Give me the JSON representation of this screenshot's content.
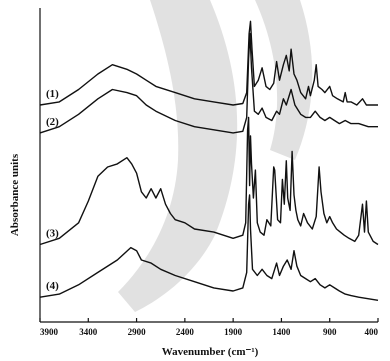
{
  "chart_data": {
    "type": "line",
    "title": "",
    "xlabel": "Wavenumber (cm⁻¹)",
    "ylabel": "Absorbance units",
    "x_reversed": true,
    "xlim": [
      3900,
      400
    ],
    "x_ticks": [
      "3900",
      "3400",
      "2900",
      "2400",
      "1900",
      "1400",
      "900",
      "400"
    ],
    "x_tick_values": [
      3900,
      3400,
      2900,
      2400,
      1900,
      1400,
      900,
      400
    ],
    "ylim": [
      0,
      10
    ],
    "y_ticks": false,
    "grid": false,
    "series": [
      {
        "name": "(1)",
        "points": [
          [
            3900,
            7.0
          ],
          [
            3700,
            7.1
          ],
          [
            3500,
            7.5
          ],
          [
            3300,
            8.0
          ],
          [
            3150,
            8.3
          ],
          [
            3000,
            8.15
          ],
          [
            2900,
            8.0
          ],
          [
            2800,
            7.8
          ],
          [
            2700,
            7.6
          ],
          [
            2500,
            7.4
          ],
          [
            2300,
            7.2
          ],
          [
            2100,
            7.1
          ],
          [
            1900,
            7.0
          ],
          [
            1800,
            7.05
          ],
          [
            1760,
            7.4
          ],
          [
            1735,
            9.3
          ],
          [
            1720,
            9.7
          ],
          [
            1705,
            8.8
          ],
          [
            1680,
            7.6
          ],
          [
            1640,
            7.8
          ],
          [
            1600,
            8.2
          ],
          [
            1560,
            7.6
          ],
          [
            1520,
            7.5
          ],
          [
            1480,
            7.7
          ],
          [
            1450,
            8.4
          ],
          [
            1420,
            7.8
          ],
          [
            1380,
            8.3
          ],
          [
            1350,
            8.6
          ],
          [
            1320,
            8.1
          ],
          [
            1300,
            8.8
          ],
          [
            1270,
            8.0
          ],
          [
            1240,
            7.8
          ],
          [
            1200,
            7.4
          ],
          [
            1150,
            7.2
          ],
          [
            1120,
            7.6
          ],
          [
            1100,
            7.3
          ],
          [
            1060,
            7.8
          ],
          [
            1040,
            8.3
          ],
          [
            1020,
            7.6
          ],
          [
            980,
            7.5
          ],
          [
            950,
            7.4
          ],
          [
            900,
            7.6
          ],
          [
            870,
            7.3
          ],
          [
            820,
            7.2
          ],
          [
            760,
            7.1
          ],
          [
            740,
            7.4
          ],
          [
            720,
            7.1
          ],
          [
            680,
            7.1
          ],
          [
            620,
            7.0
          ],
          [
            560,
            7.2
          ],
          [
            520,
            7.0
          ],
          [
            400,
            7.0
          ]
        ]
      },
      {
        "name": "(2)",
        "points": [
          [
            3900,
            6.1
          ],
          [
            3700,
            6.3
          ],
          [
            3500,
            6.7
          ],
          [
            3300,
            7.2
          ],
          [
            3150,
            7.5
          ],
          [
            3000,
            7.4
          ],
          [
            2900,
            7.3
          ],
          [
            2800,
            7.0
          ],
          [
            2700,
            6.8
          ],
          [
            2500,
            6.5
          ],
          [
            2300,
            6.3
          ],
          [
            2100,
            6.2
          ],
          [
            1900,
            6.1
          ],
          [
            1800,
            6.15
          ],
          [
            1760,
            6.6
          ],
          [
            1740,
            8.5
          ],
          [
            1725,
            9.3
          ],
          [
            1710,
            8.2
          ],
          [
            1680,
            6.8
          ],
          [
            1640,
            6.7
          ],
          [
            1600,
            6.9
          ],
          [
            1560,
            6.6
          ],
          [
            1500,
            6.5
          ],
          [
            1450,
            6.8
          ],
          [
            1420,
            6.7
          ],
          [
            1380,
            7.2
          ],
          [
            1350,
            7.0
          ],
          [
            1300,
            7.5
          ],
          [
            1260,
            7.0
          ],
          [
            1200,
            6.7
          ],
          [
            1150,
            6.6
          ],
          [
            1100,
            6.6
          ],
          [
            1050,
            6.8
          ],
          [
            1000,
            6.6
          ],
          [
            950,
            6.5
          ],
          [
            900,
            6.6
          ],
          [
            850,
            6.5
          ],
          [
            800,
            6.4
          ],
          [
            740,
            6.5
          ],
          [
            680,
            6.4
          ],
          [
            600,
            6.4
          ],
          [
            500,
            6.3
          ],
          [
            400,
            6.3
          ]
        ]
      },
      {
        "name": "(3)",
        "points": [
          [
            3900,
            2.5
          ],
          [
            3700,
            2.7
          ],
          [
            3500,
            3.2
          ],
          [
            3400,
            3.9
          ],
          [
            3300,
            4.7
          ],
          [
            3200,
            5.0
          ],
          [
            3100,
            5.1
          ],
          [
            3000,
            5.3
          ],
          [
            2950,
            5.1
          ],
          [
            2900,
            4.8
          ],
          [
            2850,
            4.2
          ],
          [
            2800,
            4.0
          ],
          [
            2750,
            4.3
          ],
          [
            2700,
            4.0
          ],
          [
            2650,
            4.3
          ],
          [
            2600,
            3.8
          ],
          [
            2550,
            3.5
          ],
          [
            2500,
            3.3
          ],
          [
            2400,
            3.2
          ],
          [
            2300,
            3.0
          ],
          [
            2100,
            2.9
          ],
          [
            1900,
            2.7
          ],
          [
            1800,
            2.8
          ],
          [
            1770,
            3.2
          ],
          [
            1750,
            6.2
          ],
          [
            1740,
            6.6
          ],
          [
            1730,
            4.4
          ],
          [
            1720,
            6.0
          ],
          [
            1710,
            5.1
          ],
          [
            1690,
            4.0
          ],
          [
            1670,
            4.9
          ],
          [
            1650,
            3.2
          ],
          [
            1620,
            2.9
          ],
          [
            1580,
            2.8
          ],
          [
            1550,
            3.3
          ],
          [
            1510,
            3.1
          ],
          [
            1480,
            5.0
          ],
          [
            1470,
            4.9
          ],
          [
            1440,
            3.3
          ],
          [
            1410,
            3.2
          ],
          [
            1390,
            4.6
          ],
          [
            1370,
            3.8
          ],
          [
            1350,
            5.2
          ],
          [
            1335,
            4.0
          ],
          [
            1310,
            3.6
          ],
          [
            1290,
            5.5
          ],
          [
            1270,
            4.1
          ],
          [
            1250,
            3.6
          ],
          [
            1230,
            3.3
          ],
          [
            1200,
            3.1
          ],
          [
            1170,
            3.5
          ],
          [
            1130,
            3.2
          ],
          [
            1080,
            3.0
          ],
          [
            1040,
            3.4
          ],
          [
            1010,
            5.0
          ],
          [
            990,
            4.2
          ],
          [
            960,
            3.5
          ],
          [
            930,
            3.2
          ],
          [
            900,
            3.4
          ],
          [
            870,
            3.2
          ],
          [
            830,
            3.0
          ],
          [
            790,
            2.9
          ],
          [
            750,
            2.8
          ],
          [
            700,
            2.7
          ],
          [
            640,
            2.6
          ],
          [
            600,
            2.8
          ],
          [
            560,
            3.8
          ],
          [
            540,
            2.9
          ],
          [
            520,
            3.9
          ],
          [
            500,
            2.9
          ],
          [
            450,
            2.6
          ],
          [
            400,
            2.5
          ]
        ]
      },
      {
        "name": "(4)",
        "points": [
          [
            3900,
            0.8
          ],
          [
            3700,
            0.9
          ],
          [
            3500,
            1.2
          ],
          [
            3300,
            1.6
          ],
          [
            3100,
            2.0
          ],
          [
            2960,
            2.4
          ],
          [
            2900,
            2.3
          ],
          [
            2850,
            2.0
          ],
          [
            2750,
            1.9
          ],
          [
            2650,
            1.7
          ],
          [
            2500,
            1.5
          ],
          [
            2300,
            1.3
          ],
          [
            2100,
            1.1
          ],
          [
            1900,
            1.0
          ],
          [
            1800,
            1.1
          ],
          [
            1760,
            1.6
          ],
          [
            1740,
            3.8
          ],
          [
            1730,
            4.1
          ],
          [
            1720,
            3.0
          ],
          [
            1700,
            1.7
          ],
          [
            1650,
            1.5
          ],
          [
            1600,
            1.7
          ],
          [
            1550,
            1.5
          ],
          [
            1500,
            1.4
          ],
          [
            1450,
            1.9
          ],
          [
            1420,
            1.5
          ],
          [
            1380,
            1.8
          ],
          [
            1340,
            2.0
          ],
          [
            1300,
            1.7
          ],
          [
            1270,
            2.3
          ],
          [
            1240,
            1.8
          ],
          [
            1200,
            1.5
          ],
          [
            1150,
            1.4
          ],
          [
            1100,
            1.3
          ],
          [
            1050,
            1.4
          ],
          [
            1000,
            1.2
          ],
          [
            950,
            1.1
          ],
          [
            900,
            1.2
          ],
          [
            850,
            1.1
          ],
          [
            800,
            1.0
          ],
          [
            740,
            0.9
          ],
          [
            680,
            0.85
          ],
          [
            600,
            0.8
          ],
          [
            400,
            0.7
          ]
        ]
      }
    ],
    "curve_labels": [
      "(1)",
      "(2)",
      "(3)",
      "(4)"
    ]
  }
}
